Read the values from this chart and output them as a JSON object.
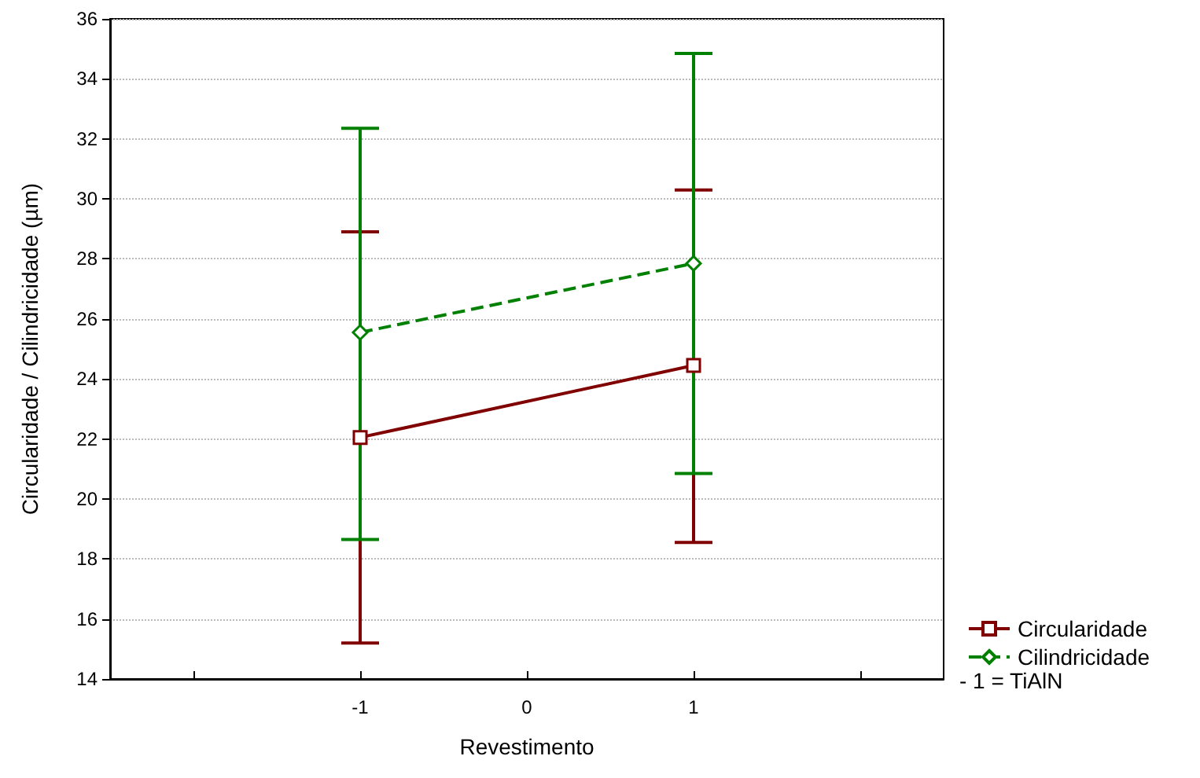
{
  "chart_data": {
    "type": "line",
    "xlabel": "Revestimento",
    "ylabel": "Circularidade / Cilindricidade (µm)",
    "x": [
      -1,
      1
    ],
    "xlim": [
      -2.5,
      2.5
    ],
    "xticks": [
      {
        "value": -2,
        "label": null
      },
      -1,
      0,
      1,
      {
        "value": 2,
        "label": null
      }
    ],
    "ylim": [
      14,
      36
    ],
    "yticks": [
      14,
      16,
      18,
      20,
      22,
      24,
      26,
      28,
      30,
      32,
      34,
      36
    ],
    "grid": "y",
    "legend": "bottom right",
    "series": [
      {
        "name": "Circularidade",
        "color": "#800000",
        "values": [
          22.05,
          24.45
        ],
        "errors": [
          [
            15.2,
            28.9
          ],
          [
            18.55,
            30.3
          ]
        ],
        "marker": "square",
        "line_style": "solid"
      },
      {
        "name": "Cilindricidade",
        "color": "#008000",
        "values": [
          25.55,
          27.85
        ],
        "errors": [
          [
            18.65,
            32.35
          ],
          [
            20.85,
            34.85
          ]
        ],
        "marker": "diamond",
        "line_style": "dashed"
      }
    ],
    "annotations": [
      "- 1 = TiAlN"
    ]
  }
}
